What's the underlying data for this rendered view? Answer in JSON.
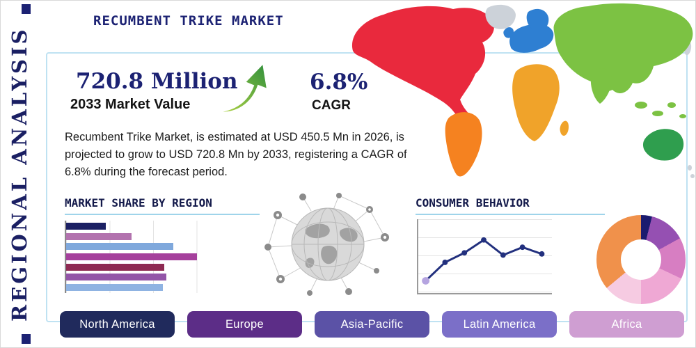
{
  "page": {
    "vertical_label": "REGIONAL ANALYSIS",
    "title": "RECUMBENT TRIKE MARKET"
  },
  "stats": {
    "market_value": "720.8 Million",
    "market_value_label": "2033 Market Value",
    "cagr_value": "6.8%",
    "cagr_label": "CAGR",
    "growth_arrow_icon": "curved-up-right-arrow",
    "arrow_color_start": "#b6d645",
    "arrow_color_end": "#2f8f3c"
  },
  "description": "Recumbent Trike Market, is estimated at USD 450.5 Mn in 2026, is projected to grow to USD 720.8 Mn by 2033, registering a CAGR of 6.8% during the forecast period.",
  "sections": {
    "market_share_title": "MARKET SHARE BY REGION",
    "consumer_behavior_title": "CONSUMER BEHAVIOR"
  },
  "theme": {
    "navy": "#1c2273",
    "panel_border": "#bfe2f2",
    "heading_underline": "#9fd4ea"
  },
  "map": {
    "colors": {
      "north_america": "#e9293d",
      "south_america": "#f58220",
      "europe": "#2e7fd2",
      "africa": "#f0a32a",
      "asia": "#7cc243",
      "oceania": "#2f9e4e",
      "other_landmass": "#ccd2d9"
    }
  },
  "region_buttons": [
    {
      "label": "North America",
      "color": "#202a5c",
      "text_color": "#ffffff"
    },
    {
      "label": "Europe",
      "color": "#5c2d87",
      "text_color": "#ffffff"
    },
    {
      "label": "Asia-Pacific",
      "color": "#5b52a6",
      "text_color": "#ffffff"
    },
    {
      "label": "Latin America",
      "color": "#7b6fc8",
      "text_color": "#ffffff"
    },
    {
      "label": "Africa",
      "color": "#cf9ed2",
      "text_color": "#ffffff"
    }
  ],
  "chart_data": [
    {
      "name": "market-share-by-region",
      "type": "bar",
      "orientation": "horizontal",
      "title": "MARKET SHARE BY REGION",
      "axis_labels_visible": false,
      "xlim": [
        0,
        100
      ],
      "grid": true,
      "values": [
        23,
        38,
        62,
        76,
        57,
        58,
        56
      ],
      "colors": [
        "#1b2063",
        "#b272ae",
        "#7fa8dc",
        "#a5409c",
        "#8e2a52",
        "#9355a8",
        "#8fb3e2"
      ]
    },
    {
      "name": "consumer-behavior-trend",
      "type": "line",
      "title": "CONSUMER BEHAVIOR",
      "axis_labels_visible": false,
      "ylim": [
        0,
        100
      ],
      "grid": true,
      "values": [
        12,
        45,
        62,
        85,
        58,
        72,
        60
      ],
      "line_color": "#22307e",
      "marker_color": "#22307e",
      "start_marker_color": "#b5a4e0"
    },
    {
      "name": "regional-share-donut",
      "type": "pie",
      "donut": true,
      "labels_visible": false,
      "segments": [
        {
          "value": 4,
          "color": "#1b1b6f"
        },
        {
          "value": 13,
          "color": "#9550b2"
        },
        {
          "value": 15,
          "color": "#d77ec2"
        },
        {
          "value": 18,
          "color": "#efa8d4"
        },
        {
          "value": 14,
          "color": "#f6cbe2"
        },
        {
          "value": 36,
          "color": "#f0914b"
        }
      ]
    }
  ]
}
